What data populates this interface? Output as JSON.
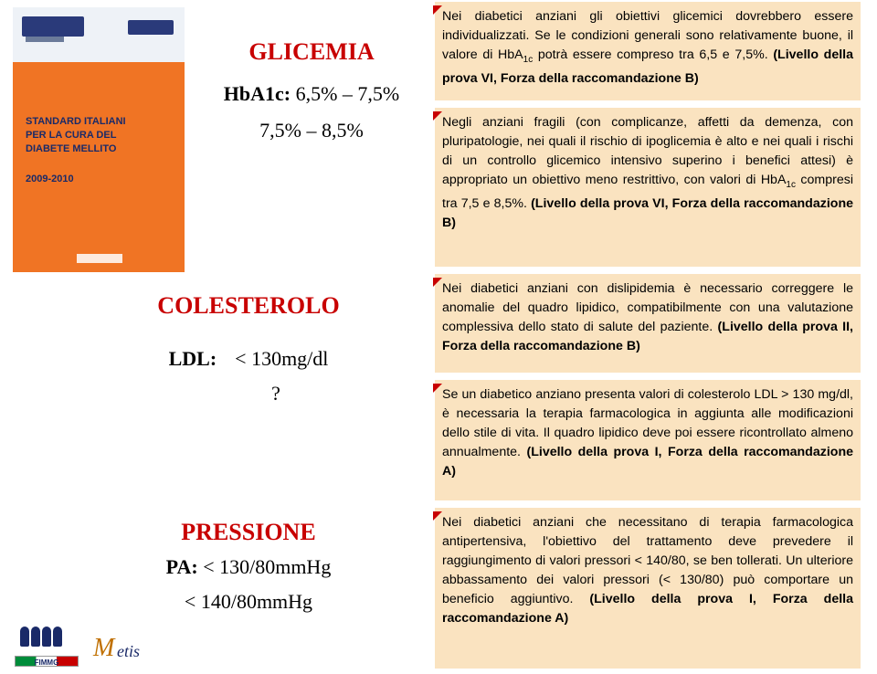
{
  "cover": {
    "title_line1": "STANDARD ITALIANI",
    "title_line2": "PER LA CURA DEL",
    "title_line3": "DIABETE MELLITO",
    "year": "2009-2010"
  },
  "glicemia": {
    "heading": "GLICEMIA",
    "label": "HbA1c:",
    "val1": "6,5% – 7,5%",
    "val2": "7,5% – 8,5%"
  },
  "colesterolo": {
    "heading": "COLESTEROLO",
    "label": "LDL:",
    "val1": "< 130mg/dl",
    "q": "?"
  },
  "pressione": {
    "heading": "PRESSIONE",
    "label": "PA:",
    "val1": "< 130/80mmHg",
    "val2": "< 140/80mmHg"
  },
  "boxes": {
    "b1": "Nei diabetici anziani gli obiettivi glicemici dovrebbero essere individualizzati. Se le condizioni generali sono relativamente buone, il valore di HbA<sub>1c</sub> potrà essere compreso tra 6,5 e 7,5%. <strong>(Livello della prova VI, Forza della raccomandazione B)</strong>",
    "b2": "Negli anziani fragili (con complicanze, affetti da demenza, con pluripatologie, nei quali il rischio di ipoglicemia è alto e nei quali i rischi di un controllo glicemico intensivo superino i benefici attesi) è appropriato un obiettivo meno restrittivo, con valori di HbA<sub>1c</sub> compresi tra 7,5 e 8,5%. <strong>(Livello della prova VI, Forza della raccomandazione B)</strong>",
    "b3": "Nei diabetici anziani con dislipidemia è necessario correggere le anomalie del quadro lipidico, compatibilmente con una valutazione complessiva dello stato di salute del paziente. <strong>(Livello della prova II, Forza della raccomandazione B)</strong>",
    "b4": "Se un diabetico anziano presenta valori di colesterolo LDL > 130 mg/dl, è necessaria la terapia farmacologica in aggiunta alle modificazioni dello stile di vita. Il quadro lipidico deve poi essere ricontrollato almeno annualmente. <strong>(Livello della prova I, Forza della raccomandazione A)</strong>",
    "b5": "Nei diabetici anziani che necessitano di terapia farmacologica antipertensiva, l'obiettivo del trattamento deve prevedere il raggiungimento di valori pressori < 140/80, se ben tollerati. Un ulteriore abbassamento dei valori pressori (< 130/80) può comportare un beneficio aggiuntivo. <strong>(Livello della prova I, Forza della raccomandazione A)</strong>"
  },
  "footer": {
    "l1": "FIMMG",
    "l2": "Metis"
  }
}
